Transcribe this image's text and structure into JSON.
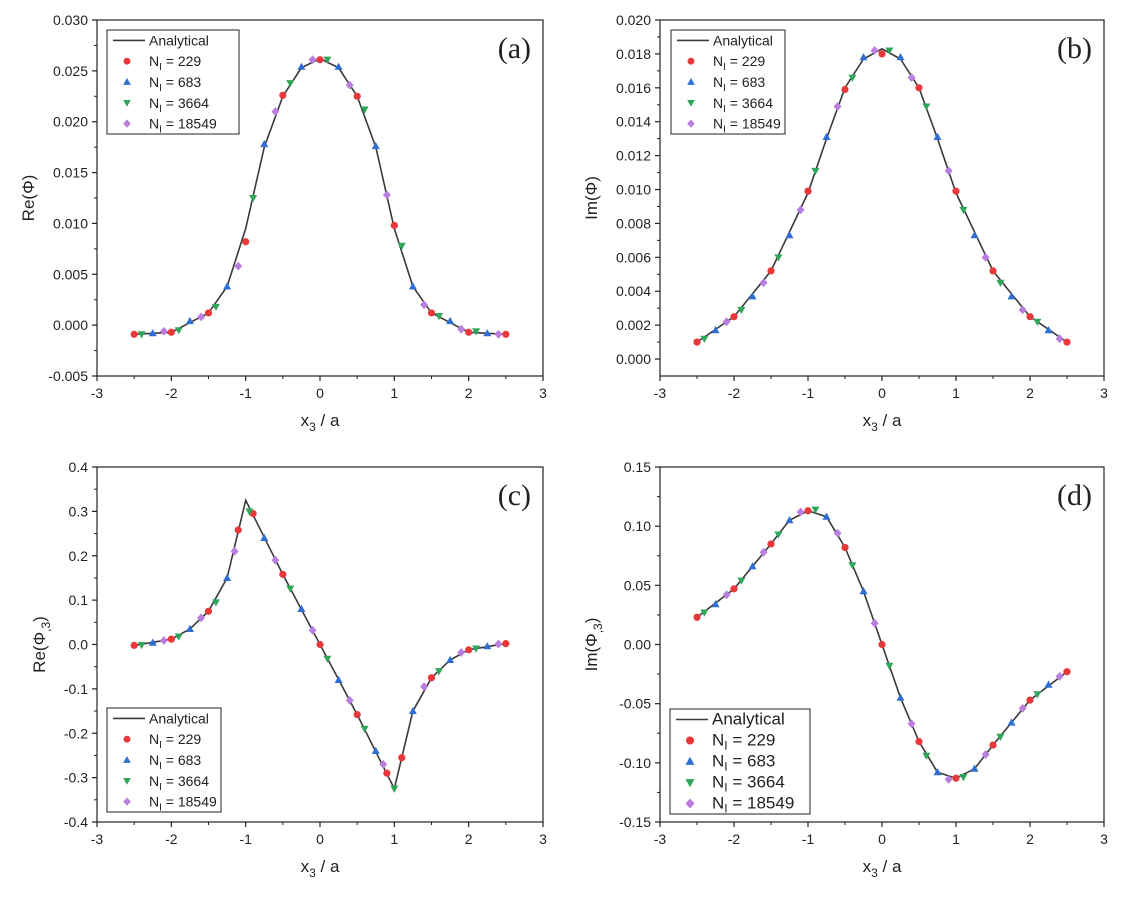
{
  "colors": {
    "analytical": "#3a3a3a",
    "n229": "#e8383a",
    "n683": "#2f6fd4",
    "n3664": "#2fa65a",
    "n18549": "#b97ee0",
    "axis": "#222222"
  },
  "legend_labels": {
    "analytical": "Analytical",
    "n229_prefix": "N",
    "n229_sub": "I",
    "n229_value": " = 229",
    "n683_prefix": "N",
    "n683_sub": "I",
    "n683_value": " = 683",
    "n3664_prefix": "N",
    "n3664_sub": "I",
    "n3664_value": " = 3664",
    "n18549_prefix": "N",
    "n18549_sub": "I",
    "n18549_value": " = 18549"
  },
  "chart_data": [
    {
      "id": "a",
      "type": "line",
      "letter": "(a)",
      "ylabel_main": "Re(Φ)",
      "ylabel_sub": "",
      "xlabel_main": "x",
      "xlabel_sub": "3",
      "xlabel_rest": " / a",
      "xlim": [
        -3,
        3
      ],
      "ylim": [
        -0.005,
        0.03
      ],
      "xticks": [
        -3,
        -2,
        -1,
        0,
        1,
        2,
        3
      ],
      "xtick_labels": [
        "-3",
        "-2",
        "-1",
        "0",
        "1",
        "2",
        "3"
      ],
      "yticks": [
        -0.005,
        0,
        0.005,
        0.01,
        0.015,
        0.02,
        0.025,
        0.03
      ],
      "ytick_labels": [
        "-0.005",
        "0.000",
        "0.005",
        "0.010",
        "0.015",
        "0.020",
        "0.025",
        "0.030"
      ],
      "legend_position": "top-left",
      "series": [
        {
          "name": "Analytical",
          "kind": "line",
          "x": [
            -2.5,
            -2.0,
            -1.5,
            -1.25,
            -1.0,
            -0.75,
            -0.5,
            -0.25,
            0,
            0.25,
            0.5,
            0.75,
            1.0,
            1.25,
            1.5,
            2.0,
            2.5
          ],
          "values": [
            -0.0009,
            -0.0007,
            0.0012,
            0.0038,
            0.0095,
            0.0175,
            0.0225,
            0.0253,
            0.0262,
            0.0253,
            0.0225,
            0.0175,
            0.0095,
            0.0038,
            0.0012,
            -0.0007,
            -0.0009
          ]
        },
        {
          "name": "NI = 229",
          "kind": "circle",
          "x": [
            -2.5,
            -2.0,
            -1.5,
            -1.0,
            -0.5,
            0,
            0.5,
            1.0,
            1.5,
            2.0,
            2.5
          ],
          "values": [
            -0.0009,
            -0.0007,
            0.0012,
            0.0082,
            0.0226,
            0.0261,
            0.0225,
            0.0098,
            0.0012,
            -0.0007,
            -0.0009
          ]
        },
        {
          "name": "NI = 683",
          "kind": "triangle-up",
          "x": [
            -2.25,
            -1.75,
            -1.25,
            -0.75,
            -0.25,
            0.25,
            0.75,
            1.25,
            1.75,
            2.25
          ],
          "values": [
            -0.0008,
            0.0004,
            0.0038,
            0.0178,
            0.0254,
            0.0254,
            0.0176,
            0.0038,
            0.0004,
            -0.0008
          ]
        },
        {
          "name": "NI = 3664",
          "kind": "triangle-down",
          "x": [
            -2.4,
            -1.9,
            -1.4,
            -0.9,
            -0.4,
            0.1,
            0.6,
            1.1,
            1.6,
            2.1
          ],
          "values": [
            -0.0009,
            -0.0005,
            0.0018,
            0.0125,
            0.0238,
            0.0261,
            0.0212,
            0.0078,
            0.0009,
            -0.0006
          ]
        },
        {
          "name": "NI = 18549",
          "kind": "diamond",
          "x": [
            -2.1,
            -1.6,
            -1.1,
            -0.6,
            -0.1,
            0.4,
            0.9,
            1.4,
            1.9,
            2.4
          ],
          "values": [
            -0.0006,
            0.0008,
            0.0058,
            0.021,
            0.0261,
            0.0236,
            0.0128,
            0.002,
            -0.0004,
            -0.0009
          ]
        }
      ]
    },
    {
      "id": "b",
      "type": "line",
      "letter": "(b)",
      "ylabel_main": "Im(Φ)",
      "ylabel_sub": "",
      "xlabel_main": "x",
      "xlabel_sub": "3",
      "xlabel_rest": " / a",
      "xlim": [
        -3,
        3
      ],
      "ylim": [
        -0.001,
        0.02
      ],
      "xticks": [
        -3,
        -2,
        -1,
        0,
        1,
        2,
        3
      ],
      "xtick_labels": [
        "-3",
        "-2",
        "-1",
        "0",
        "1",
        "2",
        "3"
      ],
      "yticks": [
        0,
        0.002,
        0.004,
        0.006,
        0.008,
        0.01,
        0.012,
        0.014,
        0.016,
        0.018,
        0.02
      ],
      "ytick_labels": [
        "0.000",
        "0.002",
        "0.004",
        "0.006",
        "0.008",
        "0.010",
        "0.012",
        "0.014",
        "0.016",
        "0.018",
        "0.020"
      ],
      "legend_position": "top-left",
      "series": [
        {
          "name": "Analytical",
          "kind": "line",
          "x": [
            -2.5,
            -2.0,
            -1.5,
            -1.0,
            -0.75,
            -0.5,
            -0.25,
            0,
            0.25,
            0.5,
            0.75,
            1.0,
            1.5,
            2.0,
            2.5
          ],
          "values": [
            0.001,
            0.0025,
            0.0052,
            0.0098,
            0.013,
            0.016,
            0.0177,
            0.0183,
            0.0177,
            0.016,
            0.013,
            0.0098,
            0.0052,
            0.0025,
            0.001
          ]
        },
        {
          "name": "NI = 229",
          "kind": "circle",
          "x": [
            -2.5,
            -2.0,
            -1.5,
            -1.0,
            -0.5,
            0,
            0.5,
            1.0,
            1.5,
            2.0,
            2.5
          ],
          "values": [
            0.001,
            0.0025,
            0.0052,
            0.0099,
            0.0159,
            0.018,
            0.016,
            0.0099,
            0.0052,
            0.0025,
            0.001
          ]
        },
        {
          "name": "NI = 683",
          "kind": "triangle-up",
          "x": [
            -2.25,
            -1.75,
            -1.25,
            -0.75,
            -0.25,
            0.25,
            0.75,
            1.25,
            1.75,
            2.25
          ],
          "values": [
            0.0017,
            0.0037,
            0.0073,
            0.0131,
            0.0178,
            0.0178,
            0.0131,
            0.0073,
            0.0037,
            0.0017
          ]
        },
        {
          "name": "NI = 3664",
          "kind": "triangle-down",
          "x": [
            -2.4,
            -1.9,
            -1.4,
            -0.9,
            -0.4,
            0.1,
            0.6,
            1.1,
            1.6,
            2.1
          ],
          "values": [
            0.0012,
            0.0029,
            0.006,
            0.0111,
            0.0166,
            0.0182,
            0.0149,
            0.0088,
            0.0045,
            0.0022
          ]
        },
        {
          "name": "NI = 18549",
          "kind": "diamond",
          "x": [
            -2.1,
            -1.6,
            -1.1,
            -0.6,
            -0.1,
            0.4,
            0.9,
            1.4,
            1.9,
            2.4
          ],
          "values": [
            0.0022,
            0.0045,
            0.0088,
            0.0149,
            0.0182,
            0.0166,
            0.0111,
            0.006,
            0.0029,
            0.0012
          ]
        }
      ]
    },
    {
      "id": "c",
      "type": "line",
      "letter": "(c)",
      "ylabel_main": "Re(Φ",
      "ylabel_sub": ",3",
      "ylabel_close": ")",
      "xlabel_main": "x",
      "xlabel_sub": "3",
      "xlabel_rest": " / a",
      "xlim": [
        -3,
        3
      ],
      "ylim": [
        -0.4,
        0.4
      ],
      "xticks": [
        -3,
        -2,
        -1,
        0,
        1,
        2,
        3
      ],
      "xtick_labels": [
        "-3",
        "-2",
        "-1",
        "0",
        "1",
        "2",
        "3"
      ],
      "yticks": [
        -0.4,
        -0.3,
        -0.2,
        -0.1,
        0,
        0.1,
        0.2,
        0.3,
        0.4
      ],
      "ytick_labels": [
        "-0.4",
        "-0.3",
        "-0.2",
        "-0.1",
        "0.0",
        "0.1",
        "0.2",
        "0.3",
        "0.4"
      ],
      "legend_position": "bottom-left",
      "series": [
        {
          "name": "Analytical",
          "kind": "line",
          "x": [
            -2.5,
            -2.0,
            -1.75,
            -1.5,
            -1.25,
            -1.0,
            -0.5,
            0,
            0.5,
            1.0,
            1.25,
            1.5,
            1.75,
            2.0,
            2.5
          ],
          "values": [
            -0.002,
            0.012,
            0.035,
            0.075,
            0.15,
            0.325,
            0.158,
            0.0,
            -0.158,
            -0.325,
            -0.15,
            -0.075,
            -0.035,
            -0.012,
            0.002
          ]
        },
        {
          "name": "NI = 229",
          "kind": "circle",
          "x": [
            -2.5,
            -2.0,
            -1.5,
            -1.1,
            -0.9,
            -0.5,
            0,
            0.5,
            0.9,
            1.1,
            1.5,
            2.0,
            2.5
          ],
          "values": [
            -0.002,
            0.012,
            0.075,
            0.258,
            0.295,
            0.158,
            0.0,
            -0.158,
            -0.29,
            -0.255,
            -0.075,
            -0.012,
            0.002
          ]
        },
        {
          "name": "NI = 683",
          "kind": "triangle-up",
          "x": [
            -2.25,
            -1.75,
            -1.25,
            -0.75,
            -0.25,
            0.25,
            0.75,
            1.25,
            1.75,
            2.25
          ],
          "values": [
            0.004,
            0.035,
            0.15,
            0.24,
            0.08,
            -0.08,
            -0.24,
            -0.15,
            -0.035,
            -0.004
          ]
        },
        {
          "name": "NI = 3664",
          "kind": "triangle-down",
          "x": [
            -2.4,
            -1.9,
            -1.4,
            -0.95,
            -0.4,
            0.1,
            0.6,
            1.0,
            1.6,
            2.1
          ],
          "values": [
            -0.001,
            0.018,
            0.095,
            0.3,
            0.126,
            -0.032,
            -0.19,
            -0.325,
            -0.06,
            -0.009
          ]
        },
        {
          "name": "NI = 18549",
          "kind": "diamond",
          "x": [
            -2.1,
            -1.6,
            -1.15,
            -0.6,
            -0.1,
            0.4,
            0.85,
            1.4,
            1.9,
            2.4
          ],
          "values": [
            0.009,
            0.06,
            0.21,
            0.19,
            0.032,
            -0.126,
            -0.27,
            -0.095,
            -0.018,
            0.001
          ]
        }
      ]
    },
    {
      "id": "d",
      "type": "line",
      "letter": "(d)",
      "ylabel_main": "Im(Φ",
      "ylabel_sub": ",3",
      "ylabel_close": ")",
      "xlabel_main": "x",
      "xlabel_sub": "3",
      "xlabel_rest": " / a",
      "xlim": [
        -3,
        3
      ],
      "ylim": [
        -0.15,
        0.15
      ],
      "xticks": [
        -3,
        -2,
        -1,
        0,
        1,
        2,
        3
      ],
      "xtick_labels": [
        "-3",
        "-2",
        "-1",
        "0",
        "1",
        "2",
        "3"
      ],
      "yticks": [
        -0.15,
        -0.1,
        -0.05,
        0,
        0.05,
        0.1,
        0.15
      ],
      "ytick_labels": [
        "-0.15",
        "-0.10",
        "-0.05",
        "0.00",
        "0.05",
        "0.10",
        "0.15"
      ],
      "legend_position": "bottom-left",
      "series": [
        {
          "name": "Analytical",
          "kind": "line",
          "x": [
            -2.5,
            -2.0,
            -1.5,
            -1.25,
            -1.0,
            -0.75,
            -0.5,
            -0.25,
            0,
            0.25,
            0.5,
            0.75,
            1.0,
            1.25,
            1.5,
            2.0,
            2.5
          ],
          "values": [
            0.023,
            0.047,
            0.085,
            0.105,
            0.113,
            0.108,
            0.082,
            0.045,
            0.0,
            -0.045,
            -0.082,
            -0.108,
            -0.113,
            -0.105,
            -0.085,
            -0.047,
            -0.023
          ]
        },
        {
          "name": "NI = 229",
          "kind": "circle",
          "x": [
            -2.5,
            -2.0,
            -1.5,
            -1.0,
            -0.5,
            0,
            0.5,
            1.0,
            1.5,
            2.0,
            2.5
          ],
          "values": [
            0.023,
            0.047,
            0.085,
            0.113,
            0.082,
            0.0,
            -0.082,
            -0.113,
            -0.085,
            -0.047,
            -0.023
          ]
        },
        {
          "name": "NI = 683",
          "kind": "triangle-up",
          "x": [
            -2.25,
            -1.75,
            -1.25,
            -0.75,
            -0.25,
            0.25,
            0.75,
            1.25,
            1.75,
            2.25
          ],
          "values": [
            0.034,
            0.066,
            0.105,
            0.108,
            0.045,
            -0.045,
            -0.108,
            -0.105,
            -0.066,
            -0.034
          ]
        },
        {
          "name": "NI = 3664",
          "kind": "triangle-down",
          "x": [
            -2.4,
            -1.9,
            -1.4,
            -0.9,
            -0.4,
            0.1,
            0.6,
            1.1,
            1.6,
            2.1
          ],
          "values": [
            0.027,
            0.054,
            0.093,
            0.114,
            0.067,
            -0.018,
            -0.094,
            -0.112,
            -0.078,
            -0.042
          ]
        },
        {
          "name": "NI = 18549",
          "kind": "diamond",
          "x": [
            -2.1,
            -1.6,
            -1.1,
            -0.6,
            -0.1,
            0.4,
            0.9,
            1.4,
            1.9,
            2.4
          ],
          "values": [
            0.042,
            0.078,
            0.112,
            0.094,
            0.018,
            -0.067,
            -0.114,
            -0.093,
            -0.054,
            -0.027
          ]
        }
      ]
    }
  ]
}
